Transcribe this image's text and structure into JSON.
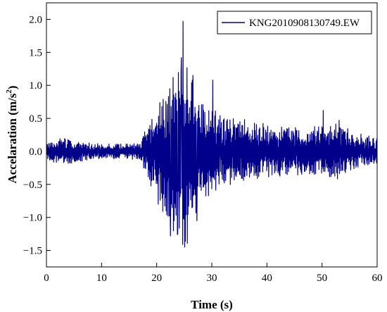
{
  "chart_data": {
    "type": "line",
    "xlabel": "Time (s)",
    "ylabel_main": "Accelaration (m/s",
    "ylabel_sup": "2",
    "ylabel_close": ")",
    "xlim": [
      0,
      60
    ],
    "ylim": [
      -1.75,
      2.25
    ],
    "xticks": [
      0,
      10,
      20,
      30,
      40,
      50,
      60
    ],
    "xtick_labels": [
      "0",
      "10",
      "20",
      "30",
      "40",
      "50",
      "60"
    ],
    "yticks": [
      -1.5,
      -1.0,
      -0.5,
      0.0,
      0.5,
      1.0,
      1.5,
      2.0
    ],
    "ytick_labels": [
      "−1.5",
      "−1.0",
      "−0.5",
      "0.0",
      "0.5",
      "1.0",
      "1.5",
      "2.0"
    ],
    "grid": false,
    "legend_position": "top-right",
    "line_color": "#00008B",
    "series": [
      {
        "name": "KNG2010908130749.EW",
        "envelope": [
          {
            "t": 0,
            "amp": 0.12
          },
          {
            "t": 3,
            "amp": 0.2
          },
          {
            "t": 6,
            "amp": 0.15
          },
          {
            "t": 10,
            "amp": 0.1
          },
          {
            "t": 17,
            "amp": 0.12
          },
          {
            "t": 19,
            "amp": 0.5
          },
          {
            "t": 21,
            "amp": 0.9
          },
          {
            "t": 23,
            "amp": 1.2
          },
          {
            "t": 25,
            "amp": 1.5
          },
          {
            "t": 27,
            "amp": 1.0
          },
          {
            "t": 29,
            "amp": 0.65
          },
          {
            "t": 32,
            "amp": 0.5
          },
          {
            "t": 36,
            "amp": 0.45
          },
          {
            "t": 42,
            "amp": 0.35
          },
          {
            "t": 48,
            "amp": 0.35
          },
          {
            "t": 53,
            "amp": 0.4
          },
          {
            "t": 56,
            "amp": 0.25
          },
          {
            "t": 60,
            "amp": 0.2
          }
        ],
        "peaks": [
          {
            "t": 22.5,
            "v": -1.28
          },
          {
            "t": 23.0,
            "v": 1.12
          },
          {
            "t": 23.8,
            "v": -1.25
          },
          {
            "t": 24.5,
            "v": 1.42
          },
          {
            "t": 24.8,
            "v": 1.97
          },
          {
            "t": 25.1,
            "v": -1.45
          },
          {
            "t": 26.6,
            "v": 1.15
          },
          {
            "t": 27.3,
            "v": -1.05
          },
          {
            "t": 30.2,
            "v": 1.08
          },
          {
            "t": 50.2,
            "v": 0.62
          },
          {
            "t": 53.1,
            "v": 0.47
          }
        ]
      }
    ]
  }
}
